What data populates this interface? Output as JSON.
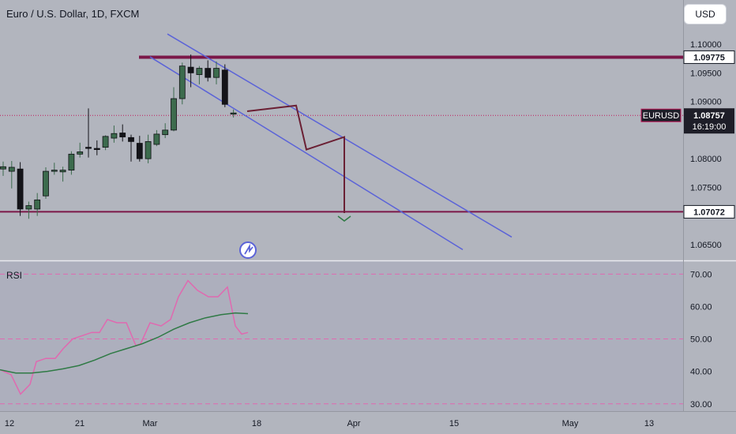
{
  "header": {
    "symbol_title": "Euro / U.S. Dollar, 1D, FXCM",
    "currency_button": "USD"
  },
  "colors": {
    "background": "#b2b5be",
    "rsi_background": "#adafbd",
    "up_candle": "#3c6b4d",
    "down_candle": "#141419",
    "channel": "#5b63d8",
    "level_line": "#7b1748",
    "rsi_line": "#e069b0",
    "rsi_ma": "#2f7a45",
    "projection": "#6b2034",
    "price_dotted": "#c2185b"
  },
  "chart_data": [
    {
      "type": "candlestick",
      "symbol": "EURUSD",
      "interval": "1D",
      "y_axis": {
        "ticks": [
          "1.10000",
          "1.09500",
          "1.09000",
          "1.08000",
          "1.07500",
          "1.06500"
        ],
        "tick_values": [
          1.1,
          1.095,
          1.09,
          1.08,
          1.075,
          1.065
        ],
        "range": [
          1.0625,
          1.1025
        ]
      },
      "x_axis": {
        "ticks": [
          "12",
          "21",
          "Mar",
          "18",
          "Apr",
          "15",
          "May",
          "13"
        ]
      },
      "candles": [
        {
          "o": 1.0782,
          "h": 1.0795,
          "l": 1.077,
          "c": 1.0786
        },
        {
          "o": 1.0778,
          "h": 1.0796,
          "l": 1.0748,
          "c": 1.0785
        },
        {
          "o": 1.0782,
          "h": 1.0794,
          "l": 1.07,
          "c": 1.0712
        },
        {
          "o": 1.0712,
          "h": 1.0725,
          "l": 1.0695,
          "c": 1.0718
        },
        {
          "o": 1.0712,
          "h": 1.074,
          "l": 1.07,
          "c": 1.0728
        },
        {
          "o": 1.0735,
          "h": 1.0785,
          "l": 1.073,
          "c": 1.0778
        },
        {
          "o": 1.0778,
          "h": 1.0793,
          "l": 1.0772,
          "c": 1.078
        },
        {
          "o": 1.0777,
          "h": 1.0786,
          "l": 1.076,
          "c": 1.078
        },
        {
          "o": 1.078,
          "h": 1.0813,
          "l": 1.0772,
          "c": 1.0808
        },
        {
          "o": 1.0808,
          "h": 1.0828,
          "l": 1.0802,
          "c": 1.0812
        },
        {
          "o": 1.082,
          "h": 1.0888,
          "l": 1.0802,
          "c": 1.0818
        },
        {
          "o": 1.0818,
          "h": 1.0832,
          "l": 1.0806,
          "c": 1.0816
        },
        {
          "o": 1.082,
          "h": 1.0841,
          "l": 1.0815,
          "c": 1.0839
        },
        {
          "o": 1.0836,
          "h": 1.0858,
          "l": 1.0828,
          "c": 1.0844
        },
        {
          "o": 1.0845,
          "h": 1.086,
          "l": 1.083,
          "c": 1.0838
        },
        {
          "o": 1.0837,
          "h": 1.0842,
          "l": 1.0795,
          "c": 1.083
        },
        {
          "o": 1.0827,
          "h": 1.084,
          "l": 1.0795,
          "c": 1.08
        },
        {
          "o": 1.08,
          "h": 1.0842,
          "l": 1.0792,
          "c": 1.083
        },
        {
          "o": 1.0825,
          "h": 1.085,
          "l": 1.0822,
          "c": 1.0843
        },
        {
          "o": 1.0842,
          "h": 1.0862,
          "l": 1.0836,
          "c": 1.085
        },
        {
          "o": 1.085,
          "h": 1.0925,
          "l": 1.0848,
          "c": 1.0905
        },
        {
          "o": 1.0905,
          "h": 1.0968,
          "l": 1.0895,
          "c": 1.0962
        },
        {
          "o": 1.096,
          "h": 1.0982,
          "l": 1.0925,
          "c": 1.095
        },
        {
          "o": 1.0947,
          "h": 1.0962,
          "l": 1.093,
          "c": 1.0958
        },
        {
          "o": 1.0958,
          "h": 1.0972,
          "l": 1.0935,
          "c": 1.0942
        },
        {
          "o": 1.0942,
          "h": 1.097,
          "l": 1.093,
          "c": 1.0958
        },
        {
          "o": 1.0955,
          "h": 1.0965,
          "l": 1.089,
          "c": 1.0895
        },
        {
          "o": 1.088,
          "h": 1.0886,
          "l": 1.0872,
          "c": 1.088
        }
      ],
      "levels": [
        {
          "label": "1.09775",
          "value": 1.09775
        },
        {
          "label": "1.07072",
          "value": 1.07072
        }
      ],
      "current_price": {
        "symbol": "EURUSD",
        "label": "1.08757",
        "value": 1.08757,
        "countdown": "16:19:00"
      },
      "channel": {
        "upper": [
          {
            "x": 212,
            "y": 1.1018
          },
          {
            "x": 648,
            "y": 1.0663
          }
        ],
        "lower": [
          {
            "x": 190,
            "y": 1.0978
          },
          {
            "x": 586,
            "y": 1.0641
          }
        ]
      },
      "projection_path": [
        {
          "x": 313,
          "y": 1.0883
        },
        {
          "x": 375,
          "y": 1.0893
        },
        {
          "x": 388,
          "y": 1.0816
        },
        {
          "x": 436,
          "y": 1.0838
        },
        {
          "x": 436,
          "y": 1.0705
        }
      ]
    },
    {
      "type": "line",
      "title": "RSI",
      "y_axis": {
        "ticks": [
          "70.00",
          "60.00",
          "50.00",
          "40.00",
          "30.00"
        ],
        "tick_values": [
          70,
          60,
          50,
          40,
          30
        ],
        "range": [
          28,
          73
        ]
      },
      "bands": [
        70,
        50,
        30
      ],
      "series": [
        {
          "color": "#e069b0",
          "points": [
            [
              0,
              40.5
            ],
            [
              14,
              39
            ],
            [
              26,
              33
            ],
            [
              38,
              36
            ],
            [
              46,
              43
            ],
            [
              58,
              44
            ],
            [
              70,
              44
            ],
            [
              80,
              47
            ],
            [
              92,
              50
            ],
            [
              104,
              51
            ],
            [
              116,
              52
            ],
            [
              126,
              52
            ],
            [
              136,
              56
            ],
            [
              148,
              55
            ],
            [
              160,
              55
            ],
            [
              172,
              48
            ],
            [
              178,
              48.5
            ],
            [
              190,
              55
            ],
            [
              204,
              54
            ],
            [
              216,
              56
            ],
            [
              226,
              63
            ],
            [
              238,
              68
            ],
            [
              250,
              65
            ],
            [
              264,
              63
            ],
            [
              276,
              63
            ],
            [
              288,
              66
            ],
            [
              298,
              54
            ],
            [
              306,
              51.5
            ],
            [
              314,
              52
            ]
          ]
        },
        {
          "color": "#2f7a45",
          "points": [
            [
              0,
              40.5
            ],
            [
              20,
              39.5
            ],
            [
              40,
              39.5
            ],
            [
              60,
              40
            ],
            [
              80,
              40.8
            ],
            [
              100,
              41.8
            ],
            [
              120,
              43.5
            ],
            [
              140,
              45.5
            ],
            [
              160,
              47
            ],
            [
              180,
              48.5
            ],
            [
              200,
              50.5
            ],
            [
              220,
              53
            ],
            [
              240,
              55
            ],
            [
              260,
              56.5
            ],
            [
              280,
              57.5
            ],
            [
              298,
              58
            ],
            [
              314,
              57.8
            ]
          ]
        }
      ]
    }
  ]
}
